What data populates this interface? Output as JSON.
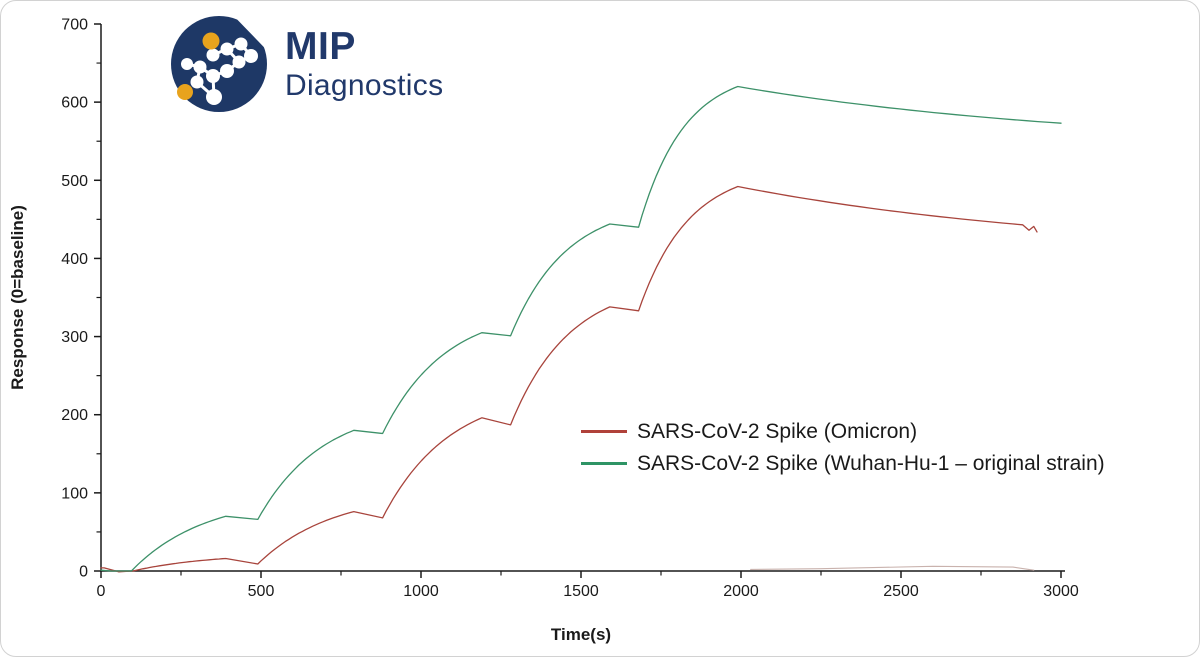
{
  "logo": {
    "title": "MIP",
    "subtitle": "Diagnostics",
    "brand_navy": "#1e3866",
    "brand_gold": "#e8a31d"
  },
  "chart_data": {
    "type": "line",
    "title": "",
    "xlabel": "Time(s)",
    "ylabel": "Response (0=baseline)",
    "xlim": [
      0,
      3000
    ],
    "ylim": [
      0,
      700
    ],
    "grid": false,
    "legend_position": "center-right",
    "x_major_ticks": [
      0,
      500,
      1000,
      1500,
      2000,
      2500,
      3000
    ],
    "x_minor_ticks": [
      250,
      750,
      1250,
      1750,
      2250,
      2750
    ],
    "y_major_ticks": [
      0,
      100,
      200,
      300,
      400,
      500,
      600,
      700
    ],
    "y_minor_ticks": [
      50,
      150,
      250,
      350,
      450,
      550,
      650
    ],
    "axis_color": "#1a1a1a",
    "series": [
      {
        "id": "omicron",
        "name": "SARS-CoV-2 Spike (Omicron)",
        "color": "#a8443c",
        "legend_color": "#b0413a",
        "width": 1.3,
        "show_in_legend": true,
        "key_points": [
          [
            0,
            4
          ],
          [
            100,
            0
          ],
          [
            390,
            16
          ],
          [
            490,
            9
          ],
          [
            790,
            76
          ],
          [
            880,
            68
          ],
          [
            1190,
            196
          ],
          [
            1280,
            187
          ],
          [
            1590,
            338
          ],
          [
            1680,
            333
          ],
          [
            1990,
            492
          ],
          [
            2915,
            440
          ]
        ],
        "segments": [
          {
            "type": "linear",
            "t": [
              0,
              10
            ],
            "r": [
              4,
              4
            ]
          },
          {
            "type": "linear",
            "t": [
              10,
              55
            ],
            "r": [
              4,
              -1
            ]
          },
          {
            "type": "linear",
            "t": [
              55,
              100
            ],
            "r": [
              -1,
              0
            ]
          },
          {
            "type": "exp",
            "t": [
              100,
              390
            ],
            "r": [
              0,
              16
            ],
            "c": 1.2
          },
          {
            "type": "linear",
            "t": [
              390,
              490
            ],
            "r": [
              16,
              9
            ]
          },
          {
            "type": "exp",
            "t": [
              490,
              790
            ],
            "r": [
              9,
              76
            ],
            "c": 1.3
          },
          {
            "type": "linear",
            "t": [
              790,
              880
            ],
            "r": [
              76,
              68
            ]
          },
          {
            "type": "exp",
            "t": [
              880,
              1190
            ],
            "r": [
              68,
              196
            ],
            "c": 1.5
          },
          {
            "type": "linear",
            "t": [
              1190,
              1280
            ],
            "r": [
              196,
              187
            ]
          },
          {
            "type": "exp",
            "t": [
              1280,
              1590
            ],
            "r": [
              187,
              338
            ],
            "c": 1.7
          },
          {
            "type": "linear",
            "t": [
              1590,
              1680
            ],
            "r": [
              338,
              333
            ]
          },
          {
            "type": "exp",
            "t": [
              1680,
              1990
            ],
            "r": [
              333,
              492
            ],
            "c": 2.0
          },
          {
            "type": "exp",
            "t": [
              1990,
              2880
            ],
            "r": [
              492,
              443
            ],
            "c": 0.8
          },
          {
            "type": "linear",
            "t": [
              2880,
              2900
            ],
            "r": [
              443,
              436
            ]
          },
          {
            "type": "linear",
            "t": [
              2900,
              2915
            ],
            "r": [
              436,
              441
            ]
          },
          {
            "type": "linear",
            "t": [
              2915,
              2925
            ],
            "r": [
              441,
              434
            ]
          }
        ]
      },
      {
        "id": "wuhan",
        "name": "SARS-CoV-2 Spike (Wuhan-Hu-1 – original strain)",
        "color": "#3d9169",
        "legend_color": "#2e9465",
        "width": 1.3,
        "show_in_legend": true,
        "key_points": [
          [
            0,
            0
          ],
          [
            95,
            0
          ],
          [
            390,
            70
          ],
          [
            490,
            66
          ],
          [
            790,
            180
          ],
          [
            880,
            176
          ],
          [
            1190,
            305
          ],
          [
            1280,
            301
          ],
          [
            1590,
            444
          ],
          [
            1680,
            440
          ],
          [
            1990,
            620
          ],
          [
            3000,
            573
          ]
        ],
        "segments": [
          {
            "type": "linear",
            "t": [
              0,
              30
            ],
            "r": [
              1,
              0
            ]
          },
          {
            "type": "linear",
            "t": [
              30,
              95
            ],
            "r": [
              0,
              0
            ]
          },
          {
            "type": "exp",
            "t": [
              95,
              390
            ],
            "r": [
              0,
              70
            ],
            "c": 1.3
          },
          {
            "type": "linear",
            "t": [
              390,
              490
            ],
            "r": [
              70,
              66
            ]
          },
          {
            "type": "exp",
            "t": [
              490,
              790
            ],
            "r": [
              66,
              180
            ],
            "c": 1.5
          },
          {
            "type": "linear",
            "t": [
              790,
              880
            ],
            "r": [
              180,
              176
            ]
          },
          {
            "type": "exp",
            "t": [
              880,
              1190
            ],
            "r": [
              176,
              305
            ],
            "c": 1.6
          },
          {
            "type": "linear",
            "t": [
              1190,
              1280
            ],
            "r": [
              305,
              301
            ]
          },
          {
            "type": "exp",
            "t": [
              1280,
              1590
            ],
            "r": [
              301,
              444
            ],
            "c": 1.8
          },
          {
            "type": "linear",
            "t": [
              1590,
              1680
            ],
            "r": [
              444,
              440
            ]
          },
          {
            "type": "exp",
            "t": [
              1680,
              1990
            ],
            "r": [
              440,
              620
            ],
            "c": 2.2
          },
          {
            "type": "exp",
            "t": [
              1990,
              3000
            ],
            "r": [
              620,
              573
            ],
            "c": 0.9
          }
        ]
      },
      {
        "id": "reference-baseline",
        "name": "reference baseline trace",
        "color": "#c9b2ad",
        "legend_color": "#c9b2ad",
        "width": 1.1,
        "show_in_legend": false,
        "key_points": [
          [
            2030,
            2
          ],
          [
            2600,
            6
          ],
          [
            2915,
            1
          ]
        ],
        "segments": [
          {
            "type": "linear",
            "t": [
              2030,
              2250
            ],
            "r": [
              2,
              3
            ]
          },
          {
            "type": "linear",
            "t": [
              2250,
              2600
            ],
            "r": [
              4,
              6
            ]
          },
          {
            "type": "linear",
            "t": [
              2600,
              2850
            ],
            "r": [
              6,
              5
            ]
          },
          {
            "type": "linear",
            "t": [
              2850,
              2915
            ],
            "r": [
              4,
              1
            ]
          }
        ]
      }
    ]
  }
}
